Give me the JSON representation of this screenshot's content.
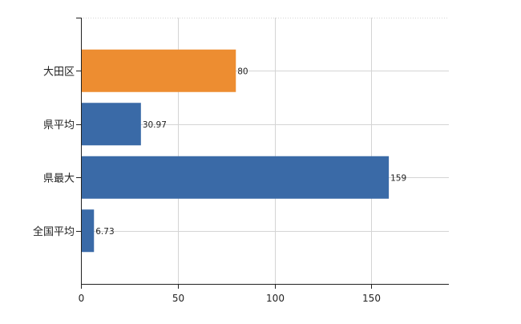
{
  "chart_data": {
    "type": "bar",
    "orientation": "horizontal",
    "categories": [
      "大田区",
      "県平均",
      "県最大",
      "全国平均"
    ],
    "values": [
      80,
      30.97,
      159,
      6.73
    ],
    "value_labels": [
      "80",
      "30.97",
      "159",
      "6.73"
    ],
    "highlight_index": 0,
    "x_ticks": [
      0,
      50,
      100,
      150
    ],
    "xlim": [
      0,
      190
    ],
    "grid": true,
    "title": "",
    "xlabel": "",
    "ylabel": ""
  },
  "colors": {
    "highlight": "#ED8D31",
    "bar": "#3A6AA7",
    "grid": "#D4D4D4",
    "axis": "#222222"
  }
}
